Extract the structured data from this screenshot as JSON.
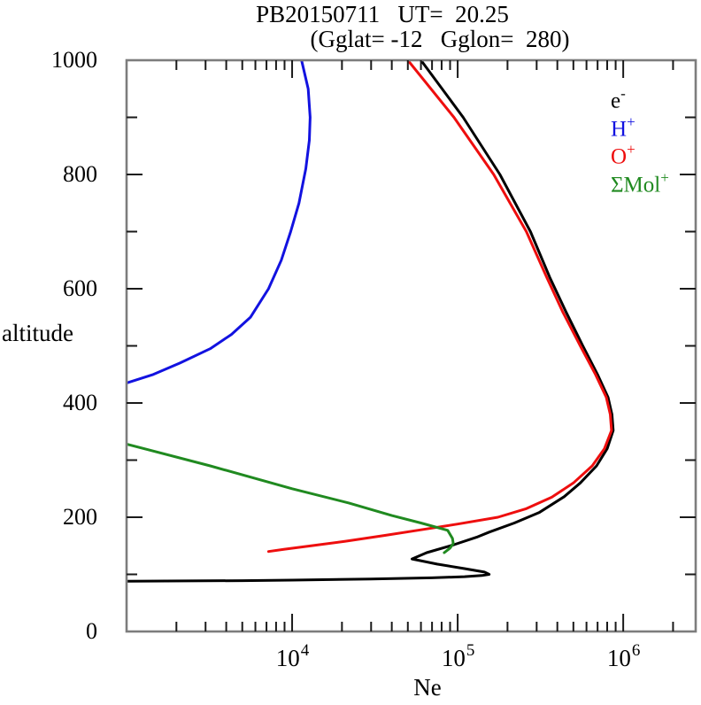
{
  "chart_data": {
    "type": "line",
    "title": "PB20150711   UT=  20.25",
    "subtitle": "(Gglat= -12   Gglon=  280)",
    "x_axis": {
      "label": "Ne",
      "scale": "log",
      "min": 1000,
      "max": 2740000,
      "tick_label_exponents": [
        4,
        5,
        6
      ]
    },
    "y_axis": {
      "label": "altitude",
      "min": 0,
      "max": 1000,
      "major_step": 200,
      "minor_step": 100,
      "tick_labels": [
        0,
        200,
        400,
        600,
        800,
        1000
      ]
    },
    "grid": false,
    "legend_position": "top-right-inside",
    "series": [
      {
        "name": "e-",
        "color": "#000000",
        "points": [
          [
            88,
            1000
          ],
          [
            89,
            5000
          ],
          [
            90,
            10000
          ],
          [
            92,
            30000
          ],
          [
            94,
            70000
          ],
          [
            96,
            110000
          ],
          [
            98,
            140000
          ],
          [
            100,
            155000
          ],
          [
            104,
            145000
          ],
          [
            110,
            110000
          ],
          [
            118,
            75000
          ],
          [
            127,
            53000
          ],
          [
            138,
            65000
          ],
          [
            152,
            95000
          ],
          [
            165,
            130000
          ],
          [
            174,
            155000
          ],
          [
            190,
            220000
          ],
          [
            208,
            310000
          ],
          [
            236,
            440000
          ],
          [
            260,
            550000
          ],
          [
            290,
            690000
          ],
          [
            320,
            800000
          ],
          [
            352,
            870000
          ],
          [
            380,
            855000
          ],
          [
            410,
            810000
          ],
          [
            450,
            700000
          ],
          [
            500,
            570000
          ],
          [
            560,
            450000
          ],
          [
            620,
            360000
          ],
          [
            700,
            275000
          ],
          [
            800,
            180000
          ],
          [
            900,
            108000
          ],
          [
            1000,
            60000
          ]
        ]
      },
      {
        "name": "H+",
        "color": "#1212e0",
        "points": [
          [
            435,
            1000
          ],
          [
            450,
            1450
          ],
          [
            470,
            2100
          ],
          [
            495,
            3200
          ],
          [
            520,
            4300
          ],
          [
            550,
            5600
          ],
          [
            600,
            7200
          ],
          [
            650,
            8600
          ],
          [
            700,
            9800
          ],
          [
            750,
            11000
          ],
          [
            810,
            12100
          ],
          [
            860,
            12700
          ],
          [
            900,
            12850
          ],
          [
            950,
            12500
          ],
          [
            1000,
            11400
          ]
        ]
      },
      {
        "name": "O+",
        "color": "#ee0e0e",
        "points": [
          [
            140,
            7200
          ],
          [
            144,
            9000
          ],
          [
            150,
            13000
          ],
          [
            158,
            21000
          ],
          [
            168,
            36000
          ],
          [
            178,
            60000
          ],
          [
            188,
            100000
          ],
          [
            200,
            175000
          ],
          [
            215,
            260000
          ],
          [
            235,
            370000
          ],
          [
            260,
            500000
          ],
          [
            290,
            650000
          ],
          [
            320,
            770000
          ],
          [
            352,
            850000
          ],
          [
            380,
            835000
          ],
          [
            410,
            790000
          ],
          [
            450,
            680000
          ],
          [
            500,
            550000
          ],
          [
            560,
            430000
          ],
          [
            620,
            345000
          ],
          [
            700,
            260000
          ],
          [
            800,
            165000
          ],
          [
            900,
            95000
          ],
          [
            1000,
            50000
          ]
        ]
      },
      {
        "name": "SMol+",
        "color": "#208a20",
        "points": [
          [
            328,
            1000
          ],
          [
            290,
            3200
          ],
          [
            250,
            10000
          ],
          [
            225,
            22000
          ],
          [
            203,
            40000
          ],
          [
            190,
            60000
          ],
          [
            177,
            87000
          ],
          [
            163,
            93000
          ],
          [
            154,
            94000
          ],
          [
            146,
            90000
          ],
          [
            138,
            83000
          ]
        ]
      }
    ]
  },
  "legend": {
    "entries": [
      {
        "base": "e",
        "sup": "-",
        "color": "#000000"
      },
      {
        "base": "H",
        "sup": "+",
        "color": "#1212e0"
      },
      {
        "base": "O",
        "sup": "+",
        "color": "#ee0e0e"
      },
      {
        "base": "ΣMol",
        "sup": "+",
        "color": "#208a20"
      }
    ]
  },
  "frame": {
    "stroke_color": "#7d7d7d",
    "tick_color": "#1a1a1a"
  }
}
